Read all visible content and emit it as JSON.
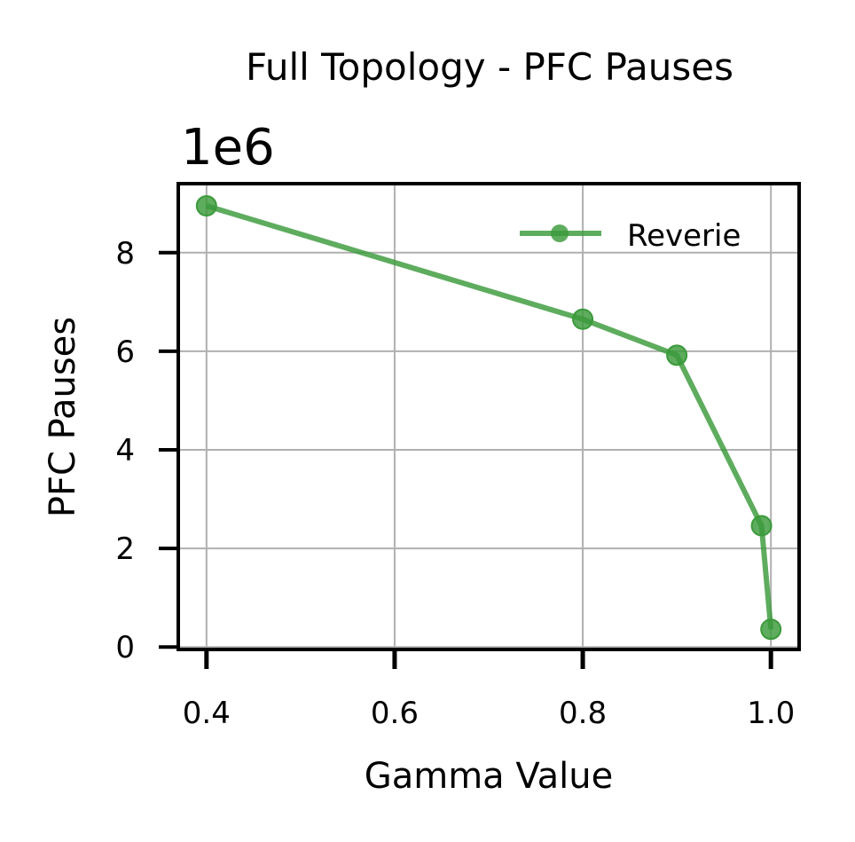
{
  "chart_data": {
    "type": "line",
    "title": "Full Topology - PFC Pauses",
    "xlabel": "Gamma Value",
    "ylabel": "PFC Pauses",
    "y_offset_label": "1e6",
    "xlim": [
      0.37,
      1.03
    ],
    "ylim": [
      -0.05,
      9.4
    ],
    "x_ticks": [
      0.4,
      0.6,
      0.8,
      1.0
    ],
    "x_tick_labels": [
      "0.4",
      "0.6",
      "0.8",
      "1.0"
    ],
    "y_ticks": [
      0,
      2,
      4,
      6,
      8
    ],
    "y_tick_labels": [
      "0",
      "2",
      "4",
      "6",
      "8"
    ],
    "grid": true,
    "legend_position": "upper right",
    "series": [
      {
        "name": "Reverie",
        "color": "#3a9a3a",
        "marker": "circle",
        "x": [
          0.4,
          0.8,
          0.9,
          0.99,
          1.0
        ],
        "y": [
          8.95,
          6.65,
          5.92,
          2.46,
          0.36
        ]
      }
    ]
  }
}
